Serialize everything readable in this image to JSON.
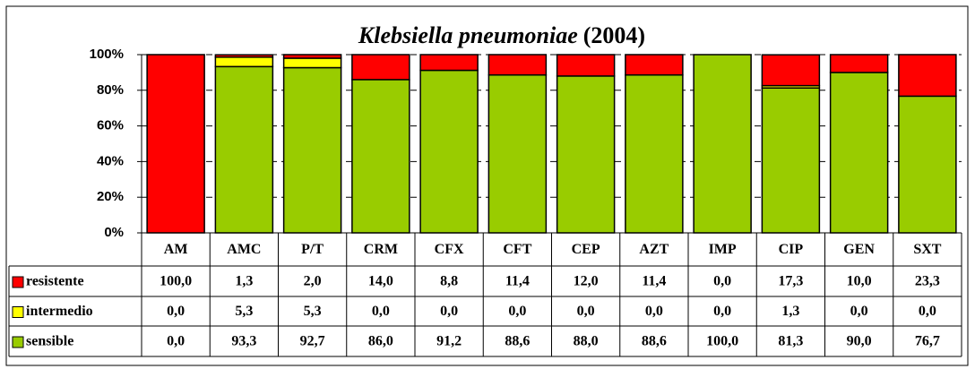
{
  "chart_data": {
    "type": "stacked_bar",
    "title": {
      "organism": "Klebsiella pneumoniae",
      "year": "(2004)"
    },
    "categories": [
      "AM",
      "AMC",
      "P/T",
      "CRM",
      "CFX",
      "CFT",
      "CEP",
      "AZT",
      "IMP",
      "CIP",
      "GEN",
      "SXT"
    ],
    "series": [
      {
        "name": "resistente",
        "color": "#ff0000",
        "values": [
          100.0,
          1.3,
          2.0,
          14.0,
          8.8,
          11.4,
          12.0,
          11.4,
          0.0,
          17.3,
          10.0,
          23.3
        ],
        "value_labels": [
          "100,0",
          "1,3",
          "2,0",
          "14,0",
          "8,8",
          "11,4",
          "12,0",
          "11,4",
          "0,0",
          "17,3",
          "10,0",
          "23,3"
        ]
      },
      {
        "name": "intermedio",
        "color": "#ffff00",
        "values": [
          0.0,
          5.3,
          5.3,
          0.0,
          0.0,
          0.0,
          0.0,
          0.0,
          0.0,
          1.3,
          0.0,
          0.0
        ],
        "value_labels": [
          "0,0",
          "5,3",
          "5,3",
          "0,0",
          "0,0",
          "0,0",
          "0,0",
          "0,0",
          "0,0",
          "1,3",
          "0,0",
          "0,0"
        ]
      },
      {
        "name": "sensible",
        "color": "#99cc00",
        "values": [
          0.0,
          93.3,
          92.7,
          86.0,
          91.2,
          88.6,
          88.0,
          88.6,
          100.0,
          81.3,
          90.0,
          76.7
        ],
        "value_labels": [
          "0,0",
          "93,3",
          "92,7",
          "86,0",
          "91,2",
          "88,6",
          "88,0",
          "88,6",
          "100,0",
          "81,3",
          "90,0",
          "76,7"
        ]
      }
    ],
    "ylim": [
      0,
      100
    ],
    "yticks": [
      {
        "value": 0,
        "label": "0%"
      },
      {
        "value": 20,
        "label": "20%"
      },
      {
        "value": 40,
        "label": "40%"
      },
      {
        "value": 60,
        "label": "60%"
      },
      {
        "value": 80,
        "label": "80%"
      },
      {
        "value": 100,
        "label": "100%"
      }
    ],
    "grid": true
  }
}
